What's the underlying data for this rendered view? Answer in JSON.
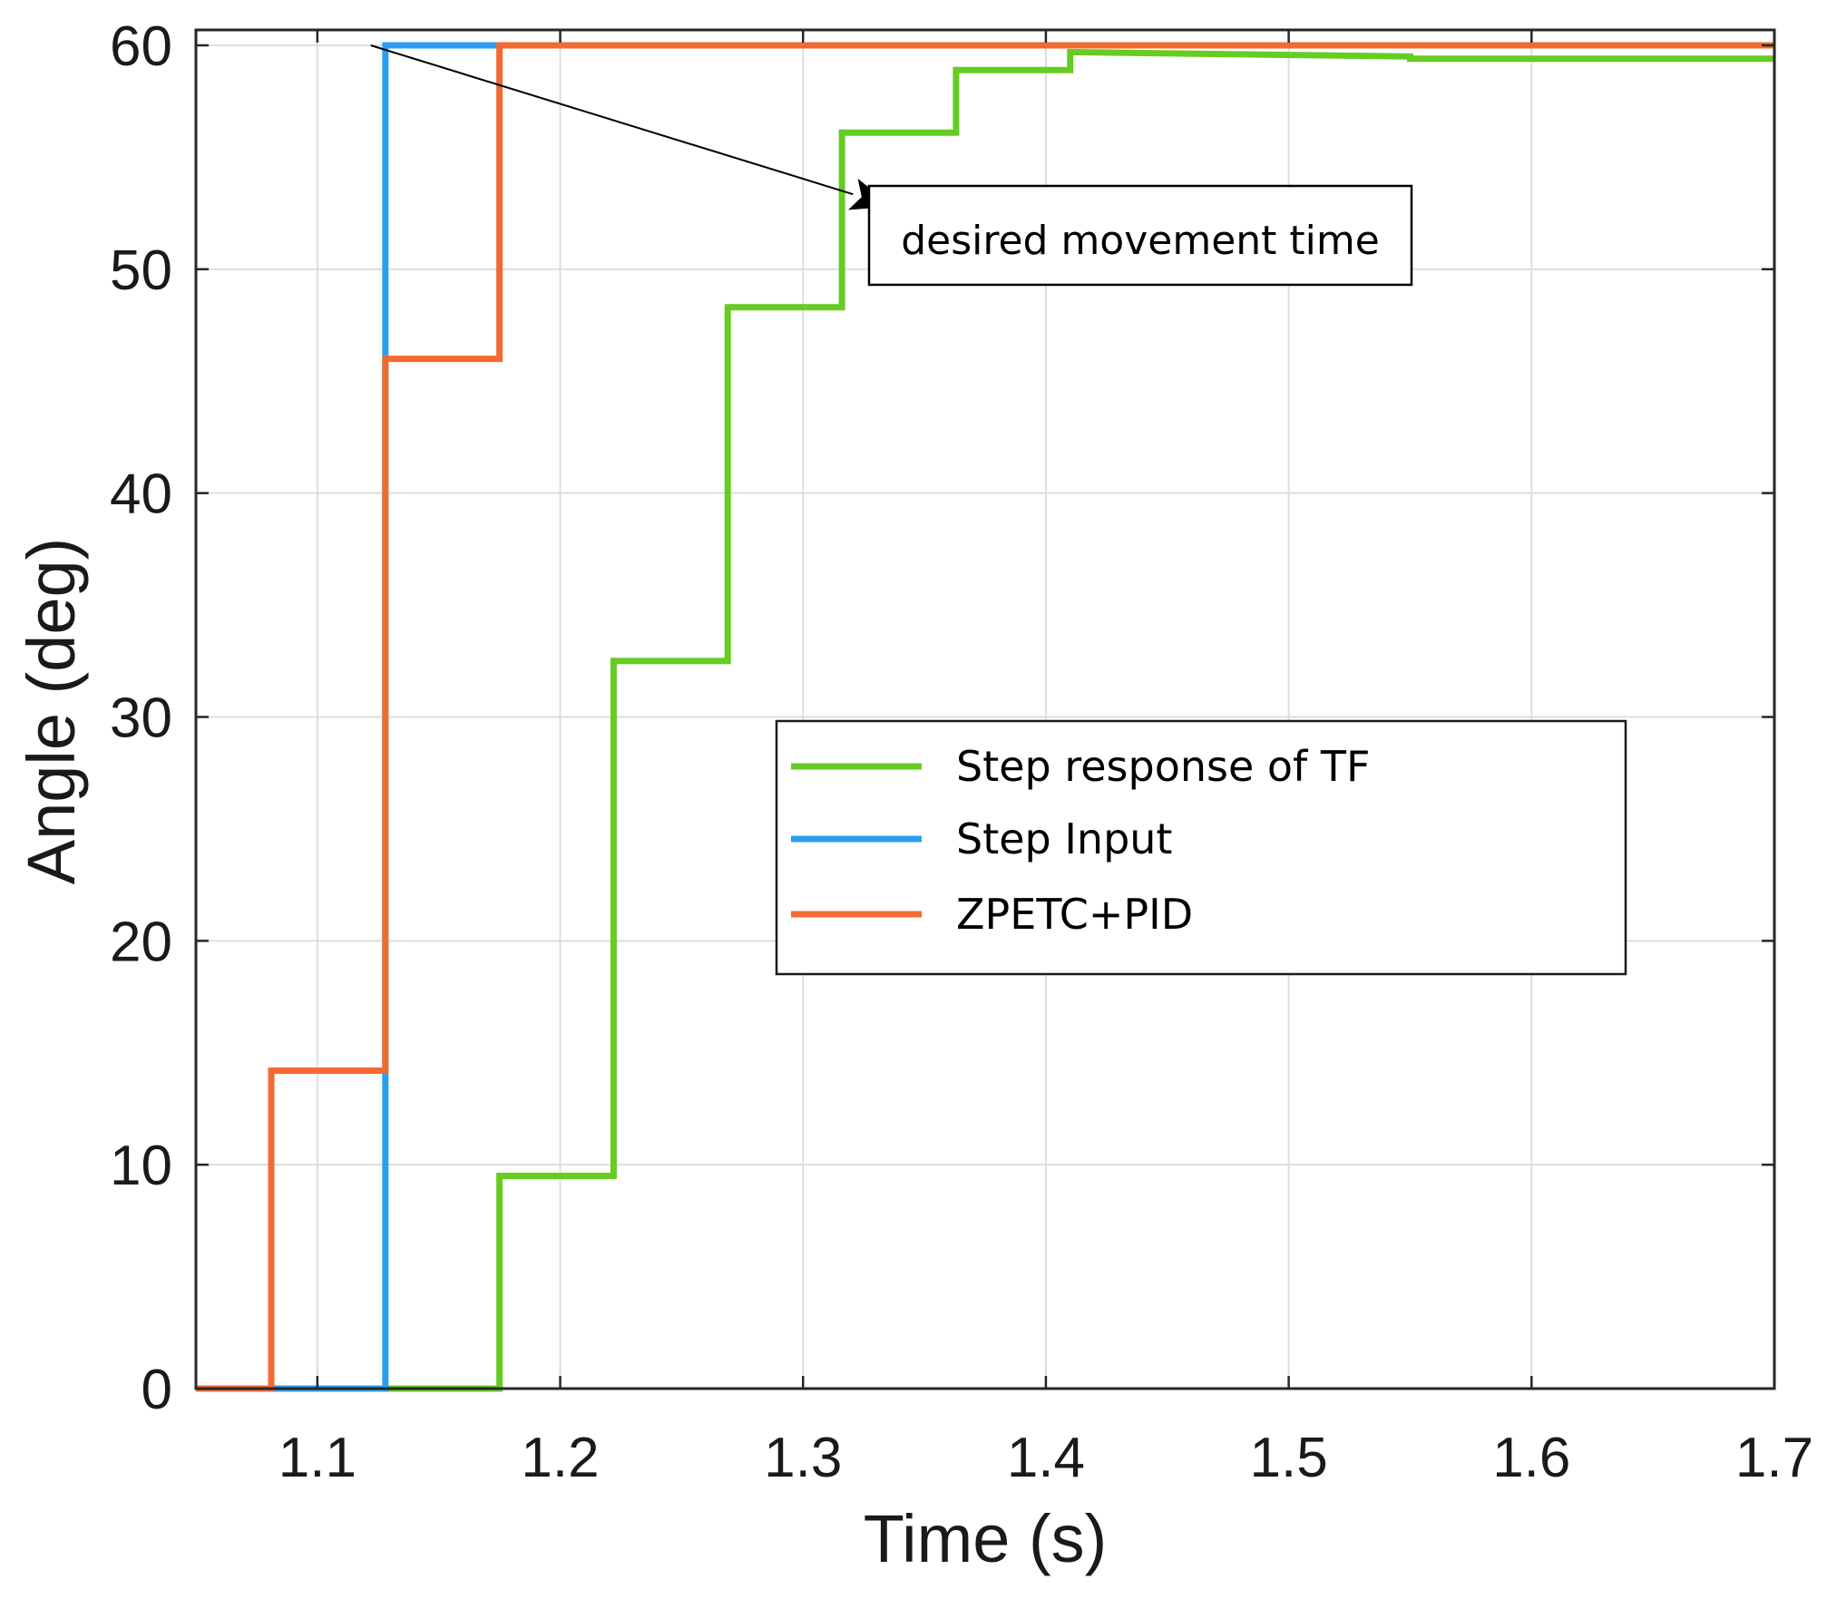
{
  "chart_data": {
    "type": "line",
    "title": "",
    "xlabel": "Time (s)",
    "ylabel": "Angle (deg)",
    "xlim": [
      1.05,
      1.7
    ],
    "ylim": [
      0,
      60
    ],
    "xticks": [
      "1.1",
      "1.2",
      "1.3",
      "1.4",
      "1.5",
      "1.6",
      "1.7"
    ],
    "yticks": [
      "0",
      "10",
      "20",
      "30",
      "40",
      "50",
      "60"
    ],
    "grid": true,
    "legend_position": "center-right",
    "series": [
      {
        "name": "Step response of TF",
        "color": "#66cc22",
        "x": [
          1.05,
          1.175,
          1.175,
          1.222,
          1.222,
          1.269,
          1.269,
          1.316,
          1.316,
          1.363,
          1.363,
          1.41,
          1.41,
          1.55,
          1.55,
          1.7
        ],
        "y": [
          0,
          0,
          9.5,
          9.5,
          32.5,
          32.5,
          48.3,
          48.3,
          56.1,
          56.1,
          58.9,
          58.9,
          59.7,
          59.5,
          59.4,
          59.4
        ]
      },
      {
        "name": "Step Input",
        "color": "#2a9ff0",
        "x": [
          1.05,
          1.128,
          1.128,
          1.7
        ],
        "y": [
          0,
          0,
          60,
          60
        ]
      },
      {
        "name": "ZPETC+PID",
        "color": "#f26a32",
        "x": [
          1.05,
          1.081,
          1.081,
          1.128,
          1.128,
          1.175,
          1.175,
          1.7
        ],
        "y": [
          0,
          0,
          14.2,
          14.2,
          46,
          46,
          60,
          60
        ]
      }
    ],
    "annotation": {
      "text": "desired movement time",
      "arrow_from": [
        1.122,
        60
      ],
      "arrow_to": [
        1.337,
        52.8
      ]
    }
  }
}
